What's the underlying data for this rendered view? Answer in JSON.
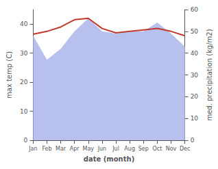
{
  "chart_data": {
    "type": "line",
    "xlabel": "date (month)",
    "ylabel": "max temp (C)",
    "y2label": "med. precipitation (kg/m2)",
    "categories": [
      "Jan",
      "Feb",
      "Mar",
      "Apr",
      "May",
      "Jun",
      "Jul",
      "Aug",
      "Sep",
      "Oct",
      "Nov",
      "Dec"
    ],
    "series": [
      {
        "type": "area",
        "color": "#b8c0ee",
        "axis": "y2",
        "values": [
          48,
          37,
          42,
          50,
          56,
          50,
          49,
          50,
          50,
          54,
          49,
          43
        ]
      },
      {
        "type": "line",
        "color": "#c0392b",
        "values": [
          36.5,
          37.5,
          39.0,
          41.5,
          42.0,
          38.5,
          37.0,
          37.5,
          38.0,
          38.5,
          37.5,
          36.0
        ]
      }
    ],
    "ylim": [
      0,
      45
    ],
    "yticks": [
      0,
      10,
      20,
      30,
      40
    ],
    "y2lim": [
      0,
      60
    ],
    "y2ticks": [
      0,
      10,
      20,
      30,
      40,
      50,
      60
    ],
    "grid": false
  }
}
